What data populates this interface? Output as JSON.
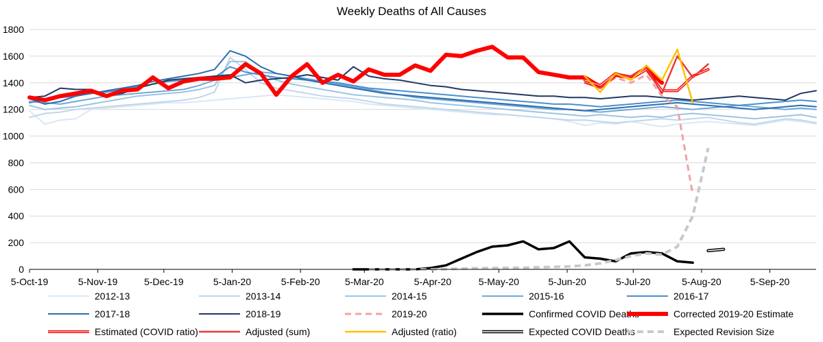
{
  "chart_data": {
    "type": "line",
    "title": "Weekly Deaths of All Causes",
    "xlabel": "",
    "ylabel": "",
    "ylim": [
      0,
      1800
    ],
    "yticks": [
      0,
      200,
      400,
      600,
      800,
      1000,
      1200,
      1400,
      1600,
      1800
    ],
    "x_unit": "week index (week 0 = 5-Oct-19)",
    "xlim": [
      0,
      51
    ],
    "xtick_labels": [
      "5-Oct-19",
      "5-Nov-19",
      "5-Dec-19",
      "5-Jan-20",
      "5-Feb-20",
      "5-Mar-20",
      "5-Apr-20",
      "5-May-20",
      "5-Jun-20",
      "5-Jul-20",
      "5-Aug-20",
      "5-Sep-20"
    ],
    "xtick_positions": [
      0,
      4.43,
      8.71,
      13.14,
      17.57,
      21.71,
      26.14,
      30.43,
      34.86,
      39.14,
      43.57,
      48.0
    ],
    "legend_position": "bottom",
    "series": [
      {
        "name": "2012-13",
        "color": "#dae8f5",
        "width": 2,
        "dash": "",
        "start": 0,
        "values": [
          1190,
          1090,
          1120,
          1130,
          1200,
          1210,
          1220,
          1230,
          1240,
          1250,
          1250,
          1260,
          1270,
          1280,
          1290,
          1300,
          1310,
          1300,
          1290,
          1280,
          1270,
          1260,
          1240,
          1230,
          1220,
          1210,
          1200,
          1190,
          1180,
          1170,
          1160,
          1160,
          1150,
          1140,
          1130,
          1110,
          1080,
          1100,
          1090,
          1110,
          1090,
          1070,
          1090,
          1100,
          1110,
          1100,
          1090,
          1080,
          1100,
          1120,
          1110,
          1090
        ]
      },
      {
        "name": "2013-14",
        "color": "#bfd6ec",
        "width": 2,
        "dash": "",
        "start": 0,
        "values": [
          1140,
          1170,
          1180,
          1200,
          1210,
          1220,
          1230,
          1240,
          1250,
          1260,
          1270,
          1290,
          1330,
          1590,
          1500,
          1400,
          1360,
          1340,
          1320,
          1300,
          1290,
          1280,
          1260,
          1240,
          1230,
          1220,
          1210,
          1200,
          1190,
          1180,
          1170,
          1160,
          1150,
          1140,
          1130,
          1120,
          1120,
          1110,
          1100,
          1110,
          1120,
          1130,
          1120,
          1130,
          1140,
          1120,
          1100,
          1090,
          1110,
          1130,
          1120,
          1100
        ]
      },
      {
        "name": "2014-15",
        "color": "#9bc3e4",
        "width": 2,
        "dash": "",
        "start": 0,
        "values": [
          1230,
          1200,
          1210,
          1220,
          1240,
          1260,
          1280,
          1300,
          1310,
          1320,
          1330,
          1350,
          1380,
          1560,
          1560,
          1470,
          1420,
          1390,
          1370,
          1350,
          1330,
          1310,
          1300,
          1290,
          1280,
          1270,
          1250,
          1240,
          1230,
          1220,
          1210,
          1200,
          1190,
          1180,
          1170,
          1160,
          1150,
          1160,
          1150,
          1140,
          1150,
          1140,
          1160,
          1170,
          1160,
          1150,
          1140,
          1130,
          1140,
          1150,
          1160,
          1140
        ]
      },
      {
        "name": "2015-16",
        "color": "#6fa7d8",
        "width": 2,
        "dash": "",
        "start": 0,
        "values": [
          1260,
          1250,
          1240,
          1260,
          1280,
          1300,
          1310,
          1320,
          1330,
          1340,
          1350,
          1380,
          1420,
          1440,
          1460,
          1480,
          1470,
          1450,
          1430,
          1410,
          1390,
          1370,
          1350,
          1330,
          1310,
          1290,
          1280,
          1270,
          1260,
          1250,
          1240,
          1230,
          1220,
          1210,
          1200,
          1200,
          1190,
          1180,
          1190,
          1200,
          1210,
          1220,
          1210,
          1200,
          1210,
          1220,
          1230,
          1220,
          1210,
          1200,
          1210,
          1200
        ]
      },
      {
        "name": "2016-17",
        "color": "#4a8fcb",
        "width": 2,
        "dash": "",
        "start": 0,
        "values": [
          1250,
          1270,
          1290,
          1300,
          1320,
          1330,
          1350,
          1370,
          1390,
          1410,
          1420,
          1430,
          1440,
          1520,
          1480,
          1460,
          1440,
          1430,
          1420,
          1410,
          1400,
          1380,
          1360,
          1350,
          1340,
          1330,
          1320,
          1310,
          1300,
          1290,
          1280,
          1270,
          1260,
          1250,
          1240,
          1240,
          1230,
          1220,
          1230,
          1240,
          1250,
          1260,
          1270,
          1260,
          1250,
          1240,
          1230,
          1240,
          1250,
          1260,
          1270,
          1260
        ]
      },
      {
        "name": "2017-18",
        "color": "#2b6cb0",
        "width": 2,
        "dash": "",
        "start": 0,
        "values": [
          1280,
          1240,
          1260,
          1300,
          1320,
          1340,
          1360,
          1380,
          1410,
          1430,
          1450,
          1470,
          1500,
          1640,
          1600,
          1520,
          1470,
          1450,
          1420,
          1400,
          1380,
          1360,
          1340,
          1320,
          1310,
          1300,
          1290,
          1280,
          1270,
          1260,
          1250,
          1240,
          1230,
          1220,
          1210,
          1200,
          1190,
          1200,
          1210,
          1220,
          1230,
          1240,
          1250,
          1240,
          1230,
          1220,
          1210,
          1200,
          1210,
          1220,
          1230,
          1220
        ]
      },
      {
        "name": "2018-19",
        "color": "#1f3864",
        "width": 2,
        "dash": "",
        "start": 0,
        "values": [
          1290,
          1300,
          1360,
          1350,
          1350,
          1300,
          1320,
          1360,
          1390,
          1420,
          1430,
          1440,
          1450,
          1460,
          1400,
          1420,
          1430,
          1440,
          1460,
          1440,
          1420,
          1520,
          1450,
          1430,
          1420,
          1400,
          1380,
          1370,
          1350,
          1340,
          1330,
          1320,
          1310,
          1300,
          1300,
          1290,
          1290,
          1280,
          1290,
          1300,
          1300,
          1290,
          1280,
          1270,
          1280,
          1290,
          1300,
          1290,
          1280,
          1270,
          1320,
          1340
        ]
      },
      {
        "name": "2019-20",
        "color": "#f4a0a0",
        "width": 3,
        "dash": "9 6",
        "start": 0,
        "values": [
          1290,
          1270,
          1300,
          1320,
          1340,
          1300,
          1340,
          1350,
          1440,
          1360,
          1410,
          1430,
          1430,
          1440,
          1540,
          1470,
          1310,
          1450,
          1540,
          1400,
          1460,
          1410,
          1500,
          1460,
          1460,
          1530,
          1490,
          1610,
          1600,
          1640,
          1670,
          1580,
          1580,
          1480,
          1460,
          1430,
          1440,
          1360,
          1440,
          1400,
          1460,
          1300,
          1220,
          560
        ]
      },
      {
        "name": "Confirmed COVID Deaths",
        "color": "#000000",
        "width": 3.5,
        "dash": "",
        "start": 21,
        "values": [
          0,
          0,
          0,
          0,
          0,
          10,
          30,
          80,
          130,
          170,
          180,
          210,
          150,
          160,
          210,
          90,
          80,
          60,
          120,
          130,
          120,
          60,
          50
        ]
      },
      {
        "name": "Corrected 2019-20 Estimate",
        "color": "#ff0000",
        "width": 6,
        "dash": "",
        "start": 0,
        "values": [
          1290,
          1270,
          1300,
          1320,
          1340,
          1300,
          1340,
          1350,
          1440,
          1360,
          1410,
          1430,
          1430,
          1440,
          1540,
          1470,
          1310,
          1450,
          1540,
          1400,
          1460,
          1410,
          1500,
          1460,
          1460,
          1530,
          1490,
          1610,
          1600,
          1640,
          1670,
          1590,
          1590,
          1480,
          1460,
          1440,
          1440,
          1370,
          1460,
          1440,
          1510,
          1400
        ]
      },
      {
        "name": "Estimated (COVID ratio)",
        "color": "#ff0000",
        "width": 4,
        "dash": "",
        "start": 36,
        "hollow": true,
        "values": [
          1420,
          1380,
          1470,
          1430,
          1500,
          1340,
          1340,
          1450,
          1500
        ]
      },
      {
        "name": "Adjusted (sum)",
        "color": "#e83a3a",
        "width": 2.5,
        "dash": "",
        "start": 36,
        "values": [
          1400,
          1360,
          1460,
          1450,
          1510,
          1320,
          1600,
          1440,
          1540
        ]
      },
      {
        "name": "Adjusted (ratio)",
        "color": "#ffc000",
        "width": 2.5,
        "dash": "",
        "start": 36,
        "values": [
          1450,
          1330,
          1470,
          1420,
          1530,
          1420,
          1650,
          1250
        ]
      },
      {
        "name": "Expected COVID Deaths",
        "color": "#000000",
        "width": 4.5,
        "dash": "",
        "start": 44,
        "hollow": true,
        "values": [
          140,
          150
        ]
      },
      {
        "name": "Expected Revision Size",
        "color": "#c8c8c8",
        "width": 4,
        "dash": "9 6",
        "start": 22,
        "values": [
          0,
          0,
          0,
          0,
          0,
          2,
          5,
          8,
          10,
          12,
          12,
          15,
          18,
          22,
          30,
          45,
          70,
          100,
          120,
          110,
          170,
          400,
          910
        ]
      }
    ]
  },
  "legend_rows": [
    [
      "2012-13",
      "2013-14",
      "2014-15",
      "2015-16",
      "2016-17"
    ],
    [
      "2017-18",
      "2018-19",
      "2019-20",
      "Confirmed COVID Deaths",
      "Corrected 2019-20 Estimate"
    ],
    [
      "Estimated (COVID ratio)",
      "Adjusted (sum)",
      "Adjusted (ratio)",
      "Expected COVID Deaths",
      "Expected Revision Size"
    ]
  ]
}
